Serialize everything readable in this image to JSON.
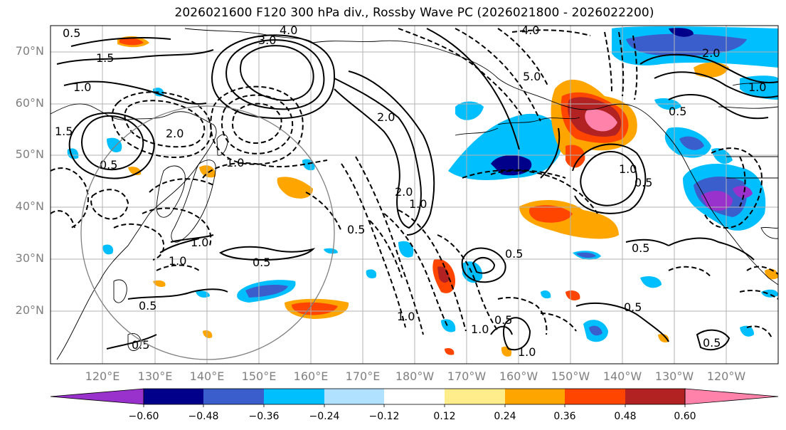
{
  "title": "2026021600 F120 300 hPa div., Rossby Wave PC (2026021800 - 2026022200)",
  "lat_labels": [
    "70°N",
    "60°N",
    "50°N",
    "40°N",
    "30°N",
    "20°N"
  ],
  "lon_labels": [
    "120°E",
    "130°E",
    "140°E",
    "150°E",
    "160°E",
    "170°E",
    "180°W",
    "170°W",
    "160°W",
    "150°W",
    "140°W",
    "130°W",
    "120°W"
  ],
  "colorbar": {
    "tick_labels": [
      "−0.60",
      "−0.48",
      "−0.36",
      "−0.24",
      "−0.12",
      "0.12",
      "0.24",
      "0.36",
      "0.48",
      "0.60"
    ],
    "colors": [
      "#9932CC",
      "#00008B",
      "#3A5FCD",
      "#00BFFF",
      "#B0E2FF",
      "#FFFFFF",
      "#FFEC8B",
      "#FFA500",
      "#FF4500",
      "#B22222",
      "#FF82AB"
    ]
  },
  "contour_labels": [
    "0.5",
    "1.5",
    "3.0",
    "4.0",
    "1.0",
    "1.5",
    "2.0",
    "2.0",
    "2.0",
    "4.0",
    "5.0",
    "0.5",
    "1.0",
    "0.5",
    "1.0",
    "0.5",
    "1.0",
    "0.5",
    "1.0",
    "0.5",
    "1.0",
    "0.5",
    "1.0",
    "0.5",
    "0.5",
    "0.5",
    "2.0",
    "0.5",
    "1.0",
    "1.0",
    "1.0",
    "0.5",
    "0.5"
  ]
}
